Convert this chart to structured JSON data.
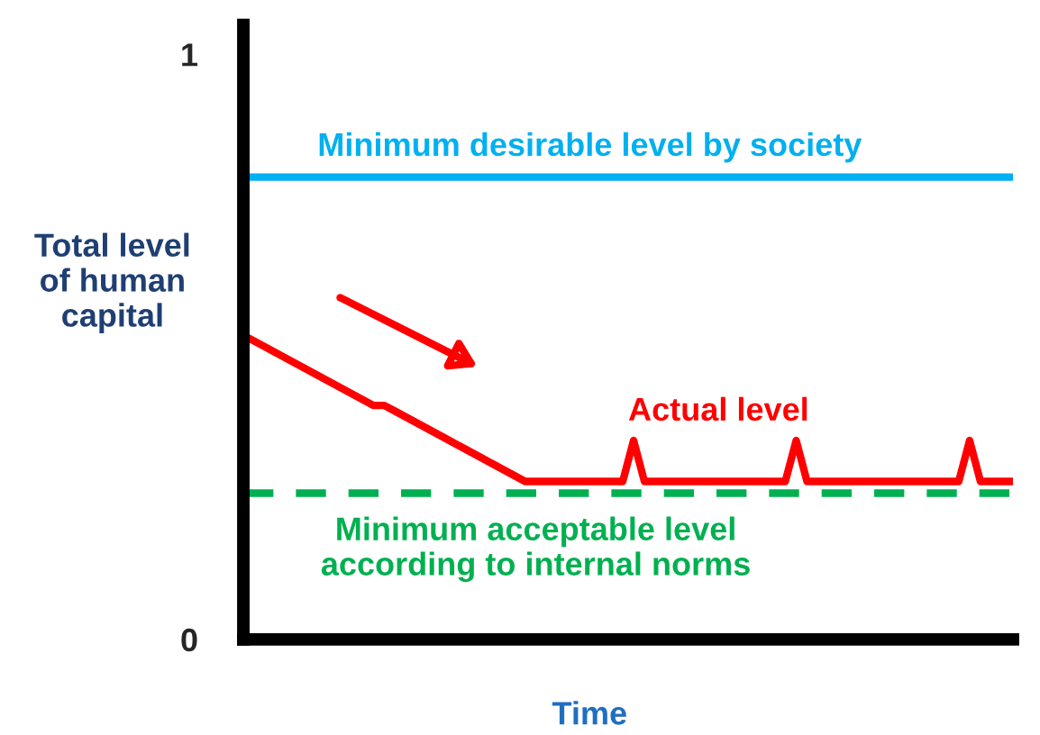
{
  "chart_data": {
    "type": "line",
    "xlabel": "Time",
    "ylabel": "Total level\nof human\ncapital",
    "categories": [
      null,
      null,
      null,
      null,
      null,
      null,
      null,
      null,
      null,
      null,
      null,
      null,
      null,
      null,
      null,
      null,
      null,
      null,
      null,
      null,
      null,
      null,
      null,
      null,
      null,
      null,
      null,
      null,
      null,
      null,
      null,
      null,
      null,
      null,
      null,
      null,
      null,
      null,
      null,
      null,
      null,
      null,
      null,
      null,
      null,
      null,
      null,
      null,
      null,
      null,
      null,
      null,
      null,
      null,
      null,
      null,
      null,
      null,
      null,
      null,
      null,
      null,
      null,
      null,
      null,
      null,
      null,
      null,
      null,
      null,
      null,
      null
    ],
    "series": [
      {
        "name": "Actual level",
        "color": "#ff0000",
        "values": [
          0.52,
          0.51,
          0.5,
          0.49,
          0.48,
          0.47,
          0.46,
          0.45,
          0.44,
          0.43,
          0.42,
          0.41,
          0.4,
          0.4,
          0.39,
          0.38,
          0.37,
          0.36,
          0.35,
          0.34,
          0.33,
          0.32,
          0.31,
          0.3,
          0.29,
          0.28,
          0.27,
          0.27,
          0.27,
          0.27,
          0.27,
          0.27,
          0.27,
          0.27,
          0.27,
          0.27,
          0.34,
          0.27,
          0.27,
          0.27,
          0.27,
          0.27,
          0.27,
          0.27,
          0.27,
          0.27,
          0.27,
          0.27,
          0.27,
          0.27,
          0.27,
          0.34,
          0.27,
          0.27,
          0.27,
          0.27,
          0.27,
          0.27,
          0.27,
          0.27,
          0.27,
          0.27,
          0.27,
          0.27,
          0.27,
          0.27,
          0.27,
          0.34,
          0.27,
          0.27,
          0.27,
          0.27
        ]
      }
    ],
    "ref_lines": [
      {
        "axis": "y",
        "value": 0.79,
        "label": "Minimum desirable level by society",
        "color": "#00b0f0",
        "line_style": "solid"
      },
      {
        "axis": "y",
        "value": 0.25,
        "label": "Minimum acceptable level\naccording to internal norms",
        "color": "#00b050",
        "line_style": "dashed"
      }
    ],
    "ylim": [
      0,
      1.05
    ],
    "yticks": [
      0,
      1
    ],
    "tick_labels": "y",
    "marker": "none",
    "line_style": "solid",
    "grid": false,
    "legend": false
  }
}
